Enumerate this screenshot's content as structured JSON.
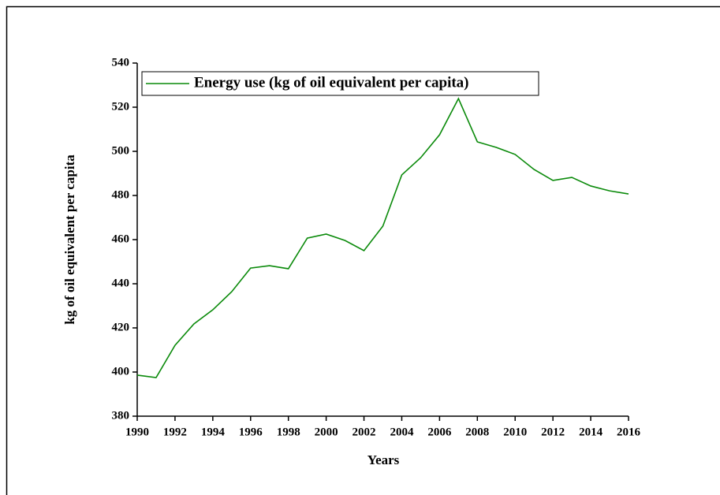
{
  "chart_data": {
    "type": "line",
    "x_label": "Years",
    "y_label": "kg of oil equivalent per capita",
    "x": [
      1990,
      1991,
      1992,
      1993,
      1994,
      1995,
      1996,
      1997,
      1998,
      1999,
      2000,
      2001,
      2002,
      2003,
      2004,
      2005,
      2006,
      2007,
      2008,
      2009,
      2010,
      2011,
      2012,
      2013,
      2014,
      2015,
      2016
    ],
    "series": [
      {
        "name": "Energy use (kg of oil equivalent per capita)",
        "color": "#0a8a0a",
        "values": [
          398.6,
          397.5,
          412.1,
          421.8,
          428.2,
          436.4,
          447.1,
          448.2,
          446.8,
          460.7,
          462.5,
          459.6,
          455,
          466.1,
          489.3,
          497.1,
          507.5,
          523.9,
          504.3,
          501.8,
          498.6,
          491.8,
          486.8,
          488.2,
          484.3,
          482.1,
          480.7
        ]
      }
    ],
    "xlim": [
      1990,
      2016
    ],
    "xticks": [
      1990,
      1992,
      1994,
      1996,
      1998,
      2000,
      2002,
      2004,
      2006,
      2008,
      2010,
      2012,
      2014,
      2016
    ],
    "ylim": [
      380,
      540
    ],
    "yticks": [
      380,
      400,
      420,
      440,
      460,
      480,
      500,
      520,
      540
    ],
    "legend": "upper left"
  }
}
